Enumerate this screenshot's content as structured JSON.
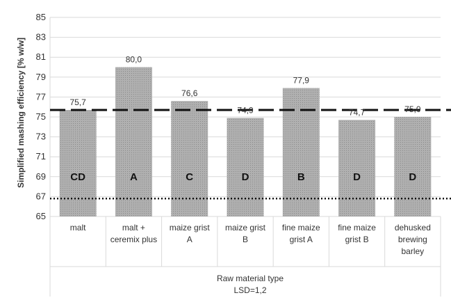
{
  "chart_data": {
    "type": "bar",
    "categories": [
      [
        "malt"
      ],
      [
        "malt +",
        "ceremix plus"
      ],
      [
        "maize grist",
        "A"
      ],
      [
        "maize grist",
        "B"
      ],
      [
        "fine maize",
        "grist A"
      ],
      [
        "fine maize",
        "grist B"
      ],
      [
        "dehusked",
        "brewing",
        "barley"
      ]
    ],
    "values": [
      75.7,
      80.0,
      76.6,
      74.9,
      77.9,
      74.7,
      75.0
    ],
    "value_labels": [
      "75,7",
      "80,0",
      "76,6",
      "74,9",
      "77,9",
      "74,7",
      "75,0"
    ],
    "groups": [
      "CD",
      "A",
      "C",
      "D",
      "B",
      "D",
      "D"
    ],
    "ylabel": "Simplified mashing efficiency [% w/w]",
    "xlabel": "Raw material type",
    "xlabel_note": "LSD=1,2",
    "ylim": [
      65,
      85
    ],
    "yticks": [
      65,
      67,
      69,
      71,
      73,
      75,
      77,
      79,
      81,
      83,
      85
    ],
    "reference_lines": [
      {
        "style": "dashed",
        "y": 75.7
      },
      {
        "style": "dotted",
        "y": 66.8
      }
    ],
    "grid": true,
    "bar_color": "#a6a6a6",
    "line_color": "#111111"
  }
}
